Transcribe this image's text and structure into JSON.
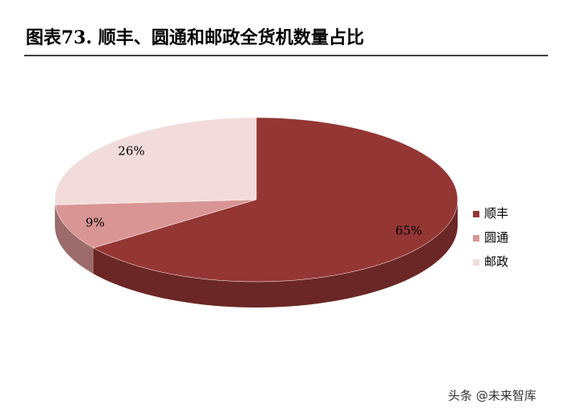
{
  "chart_data": {
    "type": "pie",
    "title": "图表73. 顺丰、圆通和邮政全货机数量占比",
    "categories": [
      "顺丰",
      "圆通",
      "邮政"
    ],
    "values": [
      65,
      9,
      26
    ],
    "value_labels": [
      "65%",
      "9%",
      "26%"
    ],
    "colors": [
      "#943634",
      "#d99594",
      "#f2dcdb"
    ],
    "legend": "right"
  },
  "watermark": "头条 @未来智库"
}
